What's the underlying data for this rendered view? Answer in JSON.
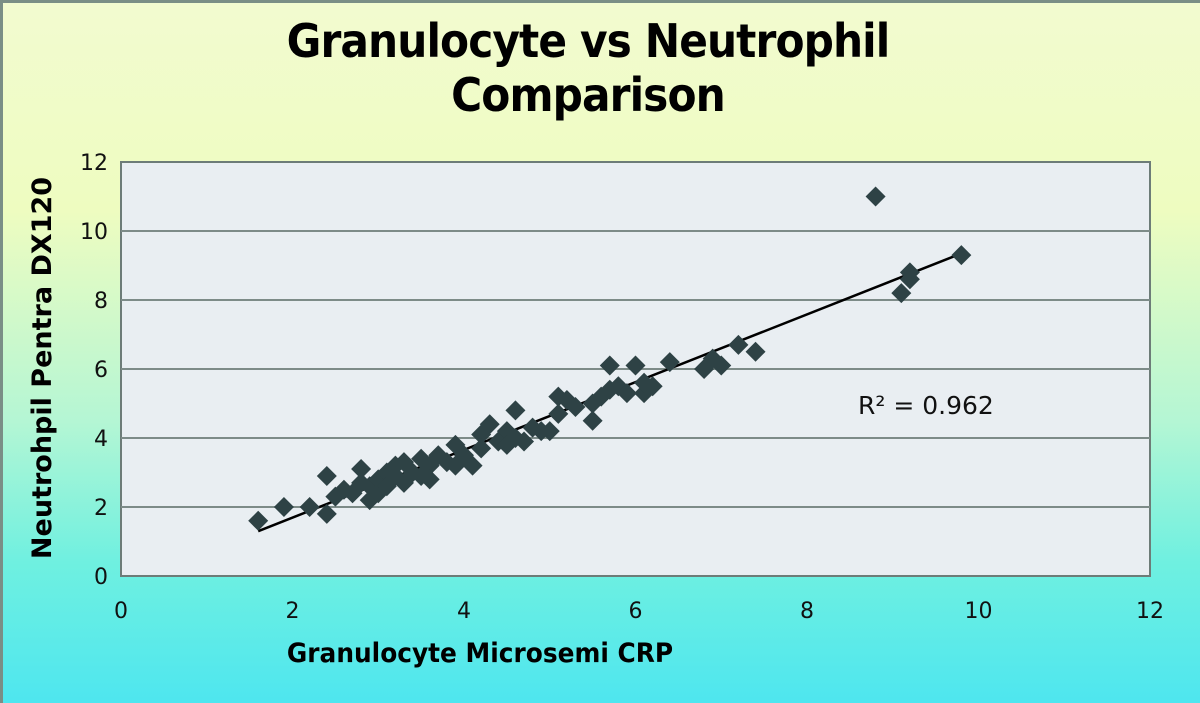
{
  "chart_data": {
    "type": "scatter",
    "title": "Granulocyte vs Neutrophil Comparison",
    "title_lines": [
      "Granulocyte vs Neutrophil",
      "Comparison"
    ],
    "xlabel": "Granulocyte Microsemi CRP",
    "ylabel": "Neutrohpil Pentra DX120",
    "xlim": [
      0,
      12
    ],
    "ylim": [
      0,
      12
    ],
    "x_ticks": [
      0,
      2,
      4,
      6,
      8,
      10,
      12
    ],
    "y_ticks": [
      0,
      2,
      4,
      6,
      8,
      10,
      12
    ],
    "grid": {
      "horizontal": true,
      "vertical": false
    },
    "legend": null,
    "marker": {
      "shape": "diamond",
      "color": "#2e4245"
    },
    "trendline": {
      "type": "linear",
      "x": [
        1.6,
        9.8
      ],
      "y": [
        1.3,
        9.35
      ],
      "color": "#000000"
    },
    "annotation": "R² = 0.962",
    "series": [
      {
        "name": "Granulocyte vs Neutrophil",
        "points": [
          [
            1.6,
            1.6
          ],
          [
            1.9,
            2.0
          ],
          [
            2.2,
            2.0
          ],
          [
            2.4,
            1.8
          ],
          [
            2.4,
            2.9
          ],
          [
            2.5,
            2.3
          ],
          [
            2.6,
            2.5
          ],
          [
            2.7,
            2.4
          ],
          [
            2.8,
            3.1
          ],
          [
            2.8,
            2.7
          ],
          [
            2.9,
            2.2
          ],
          [
            2.9,
            2.6
          ],
          [
            3.0,
            2.8
          ],
          [
            3.0,
            2.4
          ],
          [
            3.1,
            3.0
          ],
          [
            3.1,
            2.6
          ],
          [
            3.2,
            3.2
          ],
          [
            3.2,
            2.9
          ],
          [
            3.3,
            2.7
          ],
          [
            3.3,
            3.3
          ],
          [
            3.4,
            3.0
          ],
          [
            3.5,
            3.4
          ],
          [
            3.5,
            2.9
          ],
          [
            3.6,
            3.2
          ],
          [
            3.6,
            2.8
          ],
          [
            3.7,
            3.5
          ],
          [
            3.8,
            3.3
          ],
          [
            3.9,
            3.8
          ],
          [
            3.9,
            3.2
          ],
          [
            4.0,
            3.5
          ],
          [
            4.1,
            3.2
          ],
          [
            4.2,
            4.1
          ],
          [
            4.2,
            3.7
          ],
          [
            4.3,
            4.4
          ],
          [
            4.4,
            3.9
          ],
          [
            4.5,
            4.2
          ],
          [
            4.5,
            3.8
          ],
          [
            4.6,
            4.8
          ],
          [
            4.6,
            4.0
          ],
          [
            4.7,
            3.9
          ],
          [
            4.8,
            4.3
          ],
          [
            4.9,
            4.2
          ],
          [
            5.0,
            4.2
          ],
          [
            5.1,
            5.2
          ],
          [
            5.1,
            4.7
          ],
          [
            5.2,
            5.1
          ],
          [
            5.3,
            4.9
          ],
          [
            5.5,
            4.5
          ],
          [
            5.5,
            5.0
          ],
          [
            5.6,
            5.2
          ],
          [
            5.7,
            6.1
          ],
          [
            5.7,
            5.4
          ],
          [
            5.8,
            5.5
          ],
          [
            5.9,
            5.3
          ],
          [
            6.0,
            6.1
          ],
          [
            6.1,
            5.3
          ],
          [
            6.1,
            5.6
          ],
          [
            6.2,
            5.5
          ],
          [
            6.4,
            6.2
          ],
          [
            6.8,
            6.0
          ],
          [
            6.9,
            6.3
          ],
          [
            7.0,
            6.1
          ],
          [
            7.2,
            6.7
          ],
          [
            7.4,
            6.5
          ],
          [
            8.8,
            11.0
          ],
          [
            9.1,
            8.2
          ],
          [
            9.2,
            8.6
          ],
          [
            9.2,
            8.8
          ],
          [
            9.8,
            9.3
          ]
        ]
      }
    ]
  }
}
